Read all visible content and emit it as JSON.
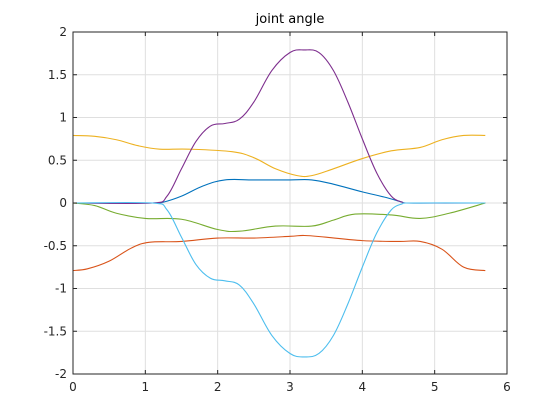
{
  "chart_data": {
    "type": "line",
    "title": "joint angle",
    "xlabel": "",
    "ylabel": "",
    "xlim": [
      0,
      6
    ],
    "ylim": [
      -2,
      2
    ],
    "xticks": [
      0,
      1,
      2,
      3,
      4,
      5,
      6
    ],
    "yticks": [
      -2,
      -1.5,
      -1,
      -0.5,
      0,
      0.5,
      1,
      1.5,
      2
    ],
    "xtick_labels": [
      "0",
      "1",
      "2",
      "3",
      "4",
      "5",
      "6"
    ],
    "ytick_labels": [
      "-2",
      "-1.5",
      "-1",
      "-0.5",
      "0",
      "0.5",
      "1",
      "1.5",
      "2"
    ],
    "grid": true,
    "legend": "none",
    "series": [
      {
        "color": "#0072BD",
        "x": [
          0,
          1.1,
          1.25,
          1.5,
          1.8,
          2.1,
          2.5,
          3.0,
          3.3,
          3.6,
          4.0,
          4.3,
          4.55,
          4.6,
          5.0,
          5.7
        ],
        "y": [
          0,
          0,
          0.01,
          0.08,
          0.2,
          0.27,
          0.27,
          0.27,
          0.27,
          0.22,
          0.13,
          0.07,
          0.01,
          0,
          0,
          0
        ]
      },
      {
        "color": "#D95319",
        "x": [
          0,
          0.2,
          0.5,
          0.8,
          1.05,
          1.5,
          2.0,
          2.5,
          3.0,
          3.2,
          3.5,
          4.0,
          4.5,
          4.8,
          5.1,
          5.4,
          5.7
        ],
        "y": [
          -0.79,
          -0.77,
          -0.68,
          -0.53,
          -0.46,
          -0.45,
          -0.41,
          -0.41,
          -0.39,
          -0.38,
          -0.4,
          -0.44,
          -0.45,
          -0.45,
          -0.54,
          -0.75,
          -0.79
        ]
      },
      {
        "color": "#EDB120",
        "x": [
          0,
          0.3,
          0.6,
          0.9,
          1.2,
          1.6,
          2.2,
          2.5,
          2.8,
          3.1,
          3.3,
          3.6,
          4.0,
          4.4,
          4.8,
          5.1,
          5.4,
          5.7
        ],
        "y": [
          0.79,
          0.78,
          0.74,
          0.67,
          0.63,
          0.63,
          0.6,
          0.53,
          0.4,
          0.32,
          0.32,
          0.4,
          0.52,
          0.61,
          0.65,
          0.74,
          0.79,
          0.79
        ]
      },
      {
        "color": "#7E2F8E",
        "x": [
          0,
          1.1,
          1.3,
          1.5,
          1.7,
          1.9,
          2.1,
          2.3,
          2.5,
          2.75,
          3.0,
          3.2,
          3.4,
          3.6,
          3.8,
          4.0,
          4.2,
          4.4,
          4.55,
          4.6,
          5.7
        ],
        "y": [
          0,
          0,
          0.08,
          0.4,
          0.72,
          0.9,
          0.93,
          0.98,
          1.18,
          1.55,
          1.76,
          1.79,
          1.76,
          1.55,
          1.18,
          0.75,
          0.35,
          0.08,
          0.01,
          0,
          0
        ]
      },
      {
        "color": "#77AC30",
        "x": [
          0,
          0.3,
          0.6,
          1.0,
          1.5,
          2.0,
          2.3,
          2.8,
          3.3,
          3.6,
          3.9,
          4.4,
          4.8,
          5.2,
          5.7
        ],
        "y": [
          0,
          -0.03,
          -0.12,
          -0.18,
          -0.19,
          -0.31,
          -0.33,
          -0.27,
          -0.27,
          -0.2,
          -0.13,
          -0.14,
          -0.18,
          -0.12,
          0
        ]
      },
      {
        "color": "#4DBEEE",
        "x": [
          0,
          1.1,
          1.3,
          1.5,
          1.7,
          1.9,
          2.1,
          2.3,
          2.5,
          2.75,
          3.0,
          3.2,
          3.4,
          3.6,
          3.8,
          4.0,
          4.2,
          4.4,
          4.55,
          4.6,
          5.7
        ],
        "y": [
          0,
          0,
          -0.08,
          -0.4,
          -0.72,
          -0.88,
          -0.91,
          -0.96,
          -1.18,
          -1.55,
          -1.76,
          -1.8,
          -1.76,
          -1.55,
          -1.18,
          -0.75,
          -0.35,
          -0.08,
          -0.01,
          0,
          0
        ]
      }
    ]
  }
}
